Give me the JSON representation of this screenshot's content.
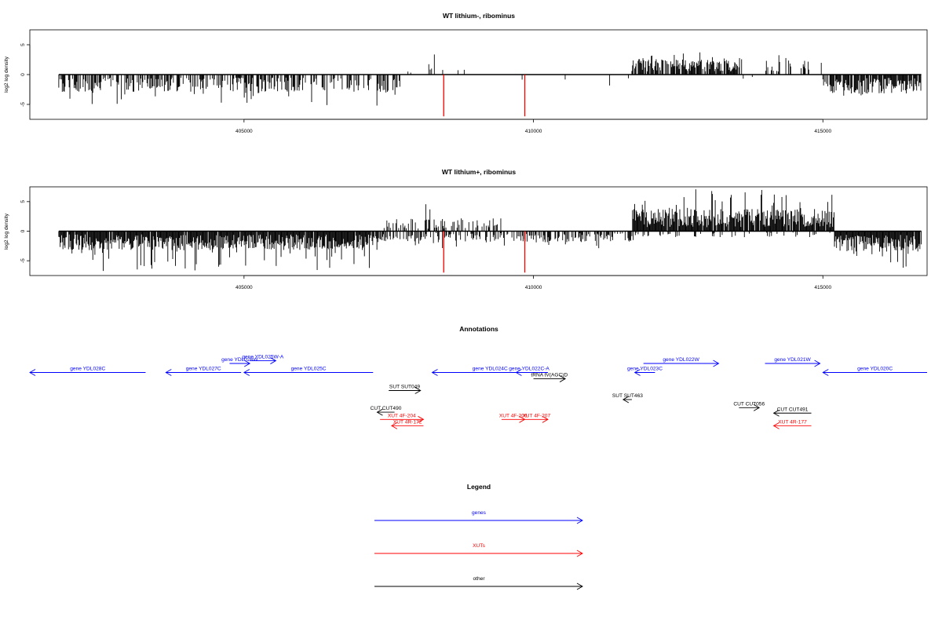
{
  "chart_data": [
    {
      "type": "bar",
      "title": "WT lithium-, ribominus",
      "ylabel": "log2 log density",
      "xlim": [
        401300,
        416800
      ],
      "ylim": [
        -7.5,
        7.5
      ],
      "x_ticks": [
        405000,
        410000,
        415000
      ],
      "y_ticks": [
        -5,
        0,
        5
      ],
      "genomic_range": [
        401800,
        416700
      ],
      "profile_segments": [
        {
          "from": 401800,
          "to": 407700,
          "sign": -1,
          "avg": 2.0,
          "max": 5.2,
          "density": 0.55
        },
        {
          "from": 407700,
          "to": 409300,
          "sign": 1,
          "avg": 0.8,
          "max": 3.4,
          "density": 0.07
        },
        {
          "from": 409300,
          "to": 411700,
          "sign": -1,
          "avg": 0.8,
          "max": 2.6,
          "density": 0.07
        },
        {
          "from": 411700,
          "to": 413600,
          "sign": 1,
          "avg": 1.8,
          "max": 4.3,
          "density": 0.8
        },
        {
          "from": 413600,
          "to": 414000,
          "sign": -1,
          "avg": 0.6,
          "max": 1.5,
          "density": 0.15
        },
        {
          "from": 414000,
          "to": 415000,
          "sign": 1,
          "avg": 1.6,
          "max": 3.3,
          "density": 0.35
        },
        {
          "from": 415000,
          "to": 416700,
          "sign": -1,
          "avg": 2.2,
          "max": 4.5,
          "density": 0.85
        }
      ],
      "markers": [
        {
          "x": 408450,
          "value": -7.0
        },
        {
          "x": 409850,
          "value": -7.0
        }
      ]
    },
    {
      "type": "bar",
      "title": "WT lithium+, ribominus",
      "ylabel": "log2 log density",
      "xlim": [
        401300,
        416800
      ],
      "ylim": [
        -7.5,
        7.5
      ],
      "x_ticks": [
        405000,
        410000,
        415000
      ],
      "y_ticks": [
        -5,
        0,
        5
      ],
      "genomic_range": [
        401800,
        416700
      ],
      "profile_segments": [
        {
          "from": 401800,
          "to": 407300,
          "sign": -1,
          "avg": 2.2,
          "max": 6.8,
          "density": 0.95
        },
        {
          "from": 407300,
          "to": 409500,
          "sign": 1,
          "avg": 1.5,
          "max": 4.7,
          "density": 0.45
        },
        {
          "from": 407300,
          "to": 411700,
          "sign": -1,
          "avg": 1.3,
          "max": 3.0,
          "density": 0.45
        },
        {
          "from": 411700,
          "to": 415200,
          "sign": 1,
          "avg": 2.6,
          "max": 7.2,
          "density": 0.95
        },
        {
          "from": 411700,
          "to": 415200,
          "sign": -1,
          "avg": 0.7,
          "max": 1.6,
          "density": 0.2
        },
        {
          "from": 415200,
          "to": 416700,
          "sign": -1,
          "avg": 2.4,
          "max": 6.2,
          "density": 0.95
        }
      ],
      "markers": [
        {
          "x": 408450,
          "value": -7.0
        },
        {
          "x": 409850,
          "value": -7.0
        }
      ]
    }
  ],
  "annotations": {
    "title": "Annotations",
    "features": [
      {
        "label": "gene YDL028C",
        "from": 403300,
        "to": 401300,
        "row": 1,
        "class": "genes"
      },
      {
        "label": "gene YDL027C",
        "from": 404950,
        "to": 403650,
        "row": 1,
        "class": "genes"
      },
      {
        "label": "gene YDL026W",
        "from": 404750,
        "to": 405100,
        "row": 0,
        "class": "genes"
      },
      {
        "label": "gene YDL025W-A",
        "from": 405100,
        "to": 405550,
        "row": -0.3,
        "class": "genes"
      },
      {
        "label": "gene YDL025C",
        "from": 407230,
        "to": 405000,
        "row": 1,
        "class": "genes"
      },
      {
        "label": "gene YDL024C",
        "from": 410250,
        "to": 408250,
        "row": 1,
        "class": "genes"
      },
      {
        "label": "gene YDL022C-A",
        "from": 410150,
        "to": 409700,
        "row": 1,
        "class": "genes"
      },
      {
        "label": "tRNA tV(AGC)D",
        "from": 410000,
        "to": 410550,
        "row": 1.7,
        "class": "other"
      },
      {
        "label": "gene YDL023C",
        "from": 412100,
        "to": 411750,
        "row": 1,
        "class": "genes"
      },
      {
        "label": "gene YDL022W",
        "from": 411900,
        "to": 413200,
        "row": 0,
        "class": "genes"
      },
      {
        "label": "gene YDL021W",
        "from": 414000,
        "to": 414950,
        "row": 0,
        "class": "genes"
      },
      {
        "label": "gene YDL020C",
        "from": 416800,
        "to": 415000,
        "row": 1,
        "class": "genes"
      },
      {
        "label": "SUT SUT049",
        "from": 407500,
        "to": 408050,
        "row": 3,
        "class": "other"
      },
      {
        "label": "SUT SUT463",
        "from": 411700,
        "to": 411550,
        "row": 4,
        "class": "other"
      },
      {
        "label": "CUT CUT490",
        "from": 407600,
        "to": 407300,
        "row": 5.4,
        "class": "other"
      },
      {
        "label": "CUT CUT056",
        "from": 413550,
        "to": 413900,
        "row": 4.9,
        "class": "other"
      },
      {
        "label": "CUT CUT491",
        "from": 414800,
        "to": 414150,
        "row": 5.5,
        "class": "other"
      },
      {
        "label": "XUT 4F-204",
        "from": 407350,
        "to": 408100,
        "row": 6.2,
        "class": "XUTs"
      },
      {
        "label": "XUT 4R-172",
        "from": 408100,
        "to": 407550,
        "row": 6.9,
        "class": "XUTs"
      },
      {
        "label": "XUT 4F-206",
        "from": 409450,
        "to": 409850,
        "row": 6.2,
        "class": "XUTs"
      },
      {
        "label": "XUT 4F-207",
        "from": 409850,
        "to": 410250,
        "row": 6.2,
        "class": "XUTs"
      },
      {
        "label": "XUT 4R-177",
        "from": 414800,
        "to": 414150,
        "row": 6.9,
        "class": "XUTs"
      }
    ]
  },
  "legend": {
    "title": "Legend",
    "items": [
      {
        "label": "genes",
        "color": "#0000ff"
      },
      {
        "label": "XUTs",
        "color": "#ff0000"
      },
      {
        "label": "other",
        "color": "#000000"
      }
    ]
  },
  "colors": {
    "genes": "#0000ff",
    "XUTs": "#ff0000",
    "other": "#000000",
    "marker": "#ff0000"
  }
}
